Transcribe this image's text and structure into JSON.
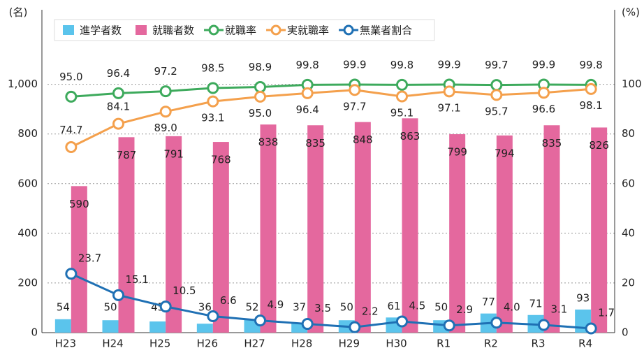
{
  "chart_data": {
    "type": "bar_line",
    "y_label": "(名)",
    "y2_label": "(%)",
    "categories": [
      "H23",
      "H24",
      "H25",
      "H26",
      "H27",
      "H28",
      "H29",
      "H30",
      "R1",
      "R2",
      "R3",
      "R4"
    ],
    "series": [
      {
        "name": "進学者数",
        "color": "#5bc4ec",
        "kind": "bar",
        "values": [
          54,
          50,
          45,
          36,
          52,
          37,
          50,
          61,
          50,
          77,
          71,
          93
        ]
      },
      {
        "name": "就職者数",
        "color": "#e4689e",
        "kind": "bar",
        "values": [
          590,
          787,
          791,
          768,
          838,
          835,
          848,
          863,
          799,
          794,
          835,
          826
        ]
      },
      {
        "name": "就職率",
        "color": "#3daa5c",
        "kind": "line",
        "axis": "y2",
        "values": [
          95,
          96.4,
          97.2,
          98.5,
          98.9,
          99.8,
          99.9,
          99.8,
          99.9,
          99.7,
          99.9,
          99.8
        ],
        "value_labels": [
          "95.0",
          "96.4",
          "97.2",
          "98.5",
          "98.9",
          "99.8",
          "99.9",
          "99.8",
          "99.9",
          "99.7",
          "99.9",
          "99.8"
        ]
      },
      {
        "name": "実就職率",
        "color": "#f4a04c",
        "kind": "line",
        "axis": "y2",
        "values": [
          74.7,
          84.1,
          89,
          93.1,
          95,
          96.4,
          97.7,
          95.1,
          97.1,
          95.7,
          96.6,
          98.1
        ],
        "value_labels": [
          "74.7",
          "84.1",
          "89.0",
          "93.1",
          "95.0",
          "96.4",
          "97.7",
          "95.1",
          "97.1",
          "95.7",
          "96.6",
          "98.1"
        ]
      },
      {
        "name": "無業者割合",
        "color": "#1f70b4",
        "kind": "line",
        "axis": "y2",
        "values": [
          23.7,
          15.1,
          10.5,
          6.6,
          4.9,
          3.5,
          2.2,
          4.5,
          2.9,
          4,
          3.1,
          1.7
        ],
        "value_labels": [
          "23.7",
          "15.1",
          "10.5",
          "6.6",
          "4.9",
          "3.5",
          "2.2",
          "4.5",
          "2.9",
          "4.0",
          "3.1",
          "1.7"
        ]
      }
    ],
    "ylim": [
      0,
      1300
    ],
    "yticks": [
      0,
      200,
      400,
      600,
      {
        "value": 1000,
        "label": "1,000"
      },
      800
    ],
    "y2lim": [
      0,
      130
    ],
    "y2ticks": [
      0,
      20,
      40,
      60,
      80,
      100
    ],
    "grid": true
  }
}
